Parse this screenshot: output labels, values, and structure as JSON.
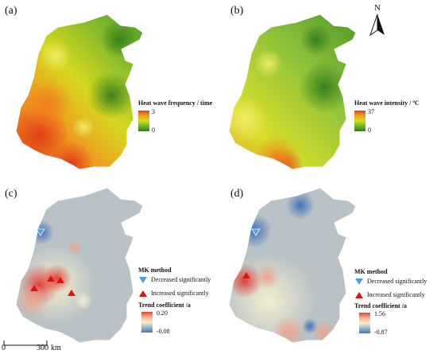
{
  "panels": {
    "a": {
      "label": "(a)",
      "legend_title": "Heat wave frequency / time",
      "ticks": {
        "max": "3",
        "min": "0"
      }
    },
    "b": {
      "label": "(b)",
      "legend_title": "Heat wave intensity / ºC",
      "ticks": {
        "max": "37",
        "min": "0"
      }
    },
    "c": {
      "label": "(c)",
      "mk_title": "MK method",
      "mk_decreased": "Decreased significantly",
      "mk_increased": "Increased significantly",
      "legend_title": "Trend coefficient /a",
      "ticks": {
        "max": "0.20",
        "min": "-0.08"
      }
    },
    "d": {
      "label": "(d)",
      "mk_title": "MK method",
      "mk_decreased": "Decreased significantly",
      "mk_increased": "Increased significantly",
      "legend_title": "Trend coefficient /a",
      "ticks": {
        "max": "1.56",
        "min": "-0.87"
      }
    }
  },
  "north_label": "N",
  "scale": {
    "zero": "0",
    "end": "300",
    "unit": "km"
  },
  "colors": {
    "heat_high": "#e53a1c",
    "heat_low": "#2f7d1b",
    "trend_high": "#e3413a",
    "trend_low": "#3f77b6",
    "trend_neutral": "#b9c2c6",
    "triangle_up": "#e0140e",
    "triangle_down": "#4a9fe0"
  }
}
